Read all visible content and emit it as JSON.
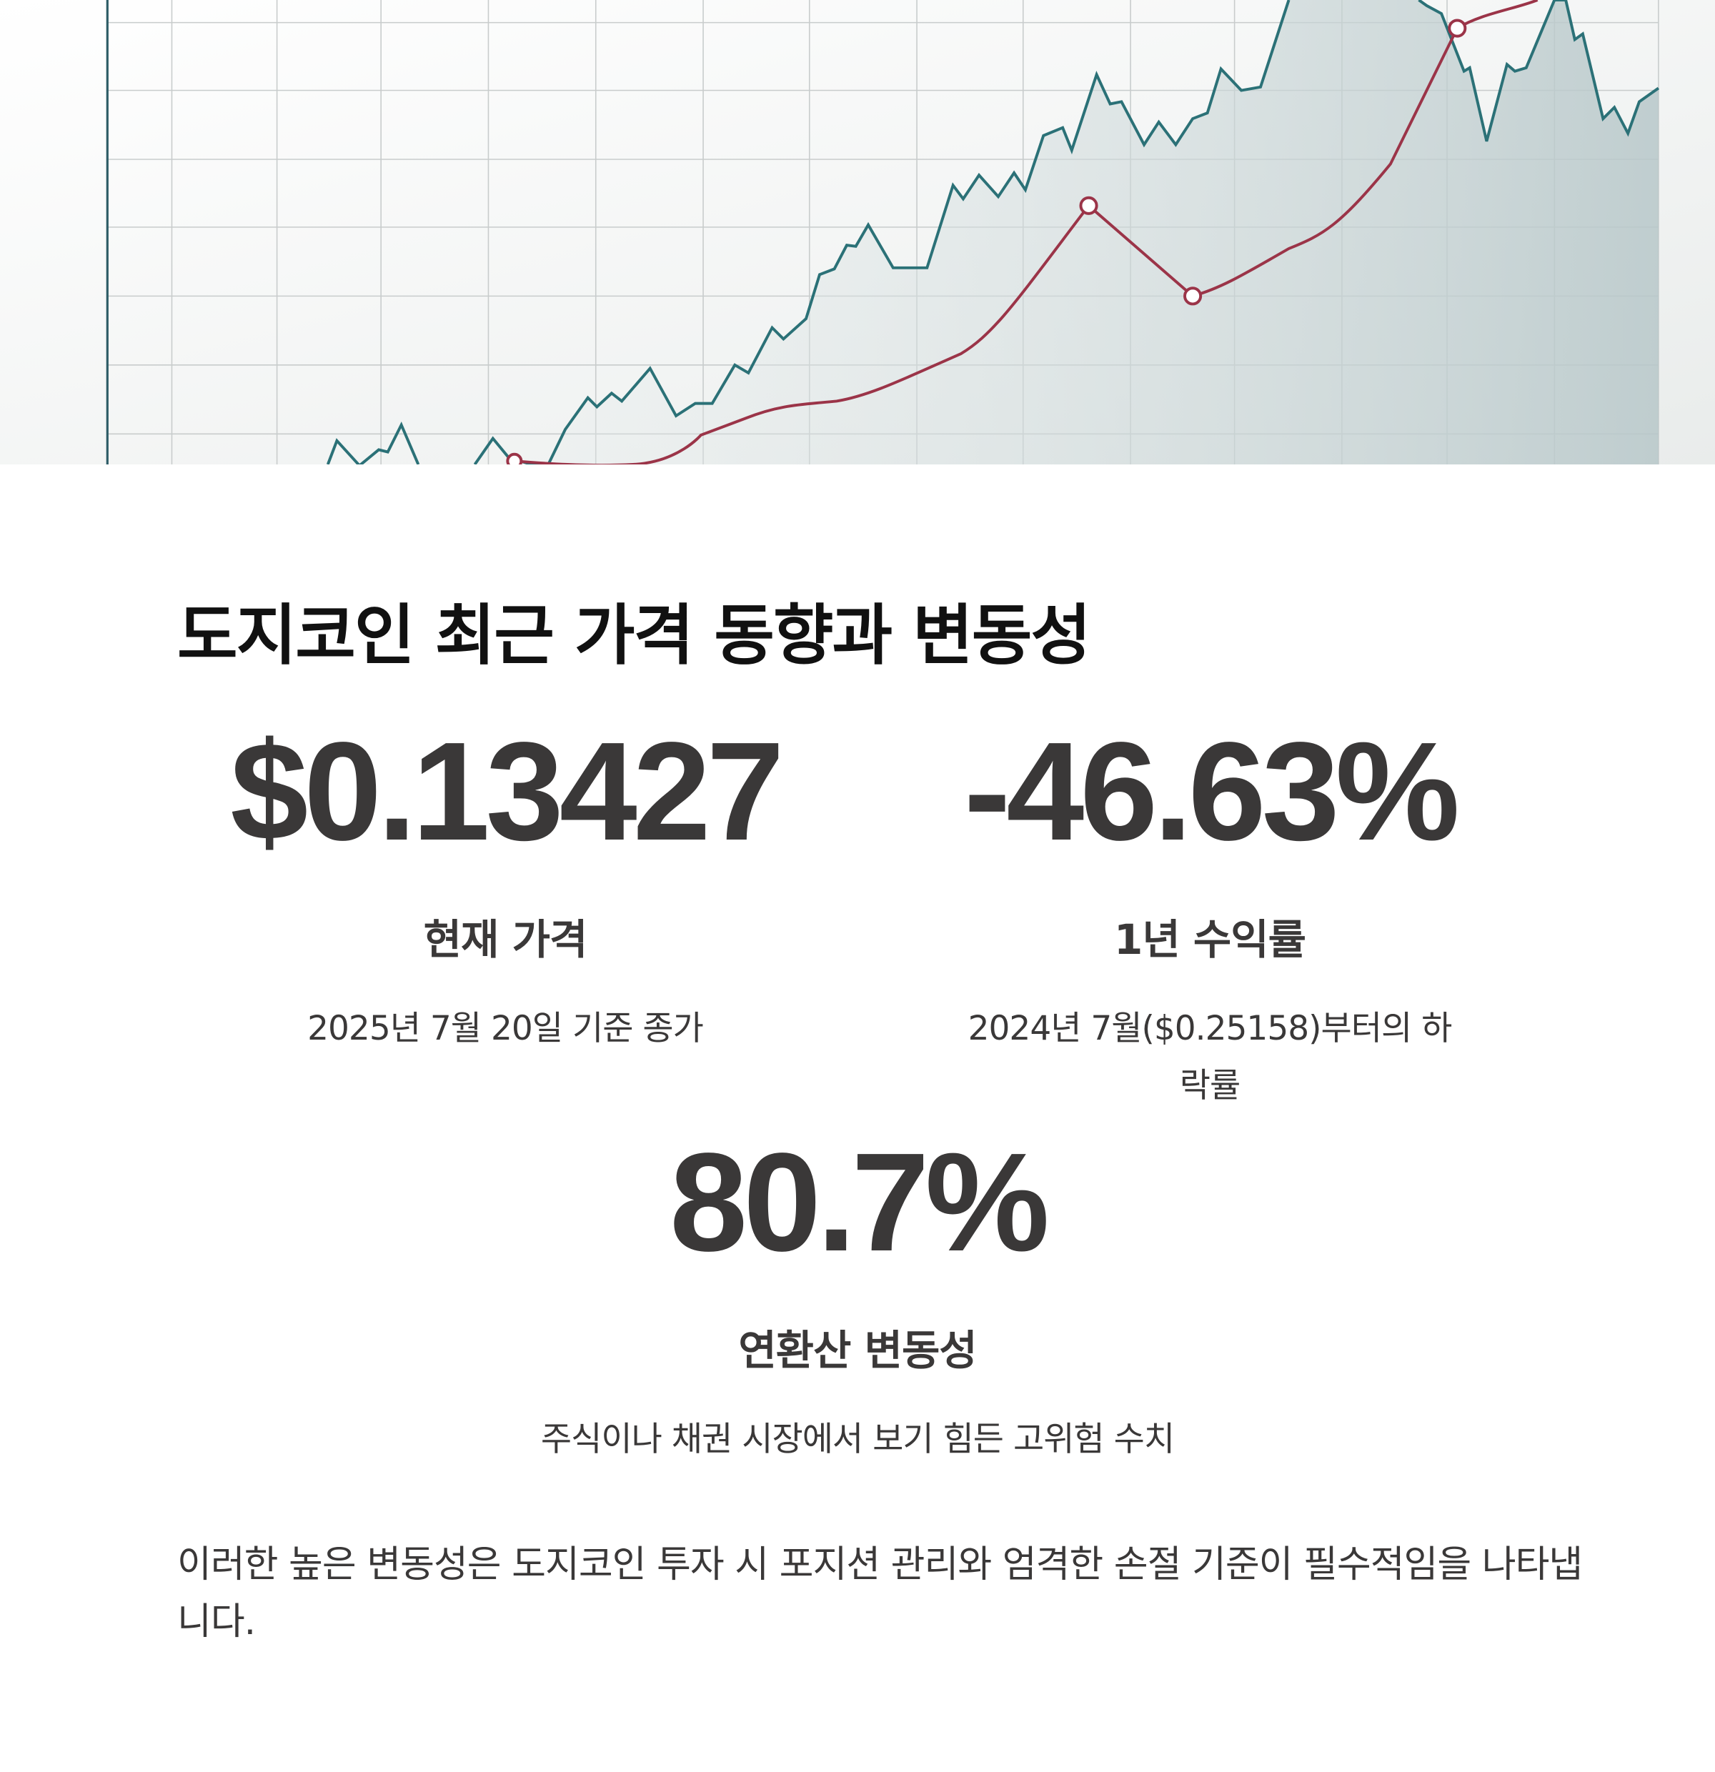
{
  "heading": "도지코인 최근 가격 동향과 변동성",
  "stats": [
    {
      "value": "$0.13427",
      "label": "현재 가격",
      "note": "2025년 7월 20일 기준 종가"
    },
    {
      "value": "-46.63%",
      "label": "1년 수익률",
      "note": "2024년 7월($0.25158)부터의 하락률"
    },
    {
      "value": "80.7%",
      "label": "연환산 변동성",
      "note": "주식이나 채권 시장에서 보기 힘든 고위험 수치"
    }
  ],
  "paragraph": "이러한 높은 변동성은 도지코인 투자 시 포지션 관리와 엄격한 손절 기준이 필수적임을 나타냅니다."
}
